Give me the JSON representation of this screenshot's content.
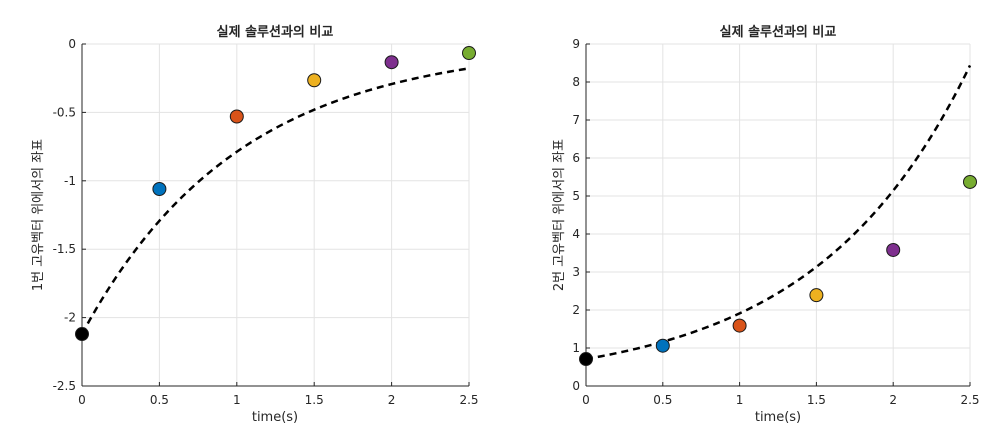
{
  "chart_data": [
    {
      "type": "scatter",
      "title": "실제 솔루션과의 비교",
      "xlabel": "time(s)",
      "ylabel": "1번 고유벡터 위에서의 좌표",
      "xlim": [
        0,
        2.5
      ],
      "ylim": [
        -2.5,
        0
      ],
      "xticks": [
        0,
        0.5,
        1,
        1.5,
        2,
        2.5
      ],
      "xtick_labels": [
        "0",
        "0.5",
        "1",
        "1.5",
        "2",
        "2.5"
      ],
      "yticks": [
        -2.5,
        -2,
        -1.5,
        -1,
        -0.5,
        0
      ],
      "ytick_labels": [
        "-2.5",
        "-2",
        "-1.5",
        "-1",
        "-0.5",
        "0"
      ],
      "grid": true,
      "points": [
        {
          "x": 0.0,
          "y": -2.12,
          "color": "#000000"
        },
        {
          "x": 0.5,
          "y": -1.06,
          "color": "#0072BD"
        },
        {
          "x": 1.0,
          "y": -0.53,
          "color": "#D95319"
        },
        {
          "x": 1.5,
          "y": -0.265,
          "color": "#EDB120"
        },
        {
          "x": 2.0,
          "y": -0.133,
          "color": "#7E2F8E"
        },
        {
          "x": 2.5,
          "y": -0.066,
          "color": "#77AC30"
        }
      ],
      "true_solution": {
        "style": "dashed",
        "color": "#000000",
        "formula": "y0*exp(-0.99*t)",
        "y0": -2.12,
        "rate": -0.99
      }
    },
    {
      "type": "scatter",
      "title": "실제 솔루션과의 비교",
      "xlabel": "time(s)",
      "ylabel": "2번 고유벡터 위에서의 좌표",
      "xlim": [
        0,
        2.5
      ],
      "ylim": [
        0,
        9
      ],
      "xticks": [
        0,
        0.5,
        1,
        1.5,
        2,
        2.5
      ],
      "xtick_labels": [
        "0",
        "0.5",
        "1",
        "1.5",
        "2",
        "2.5"
      ],
      "yticks": [
        0,
        1,
        2,
        3,
        4,
        5,
        6,
        7,
        8,
        9
      ],
      "ytick_labels": [
        "0",
        "1",
        "2",
        "3",
        "4",
        "5",
        "6",
        "7",
        "8",
        "9"
      ],
      "grid": true,
      "points": [
        {
          "x": 0.0,
          "y": 0.71,
          "color": "#000000"
        },
        {
          "x": 0.5,
          "y": 1.06,
          "color": "#0072BD"
        },
        {
          "x": 1.0,
          "y": 1.59,
          "color": "#D95319"
        },
        {
          "x": 1.5,
          "y": 2.39,
          "color": "#EDB120"
        },
        {
          "x": 2.0,
          "y": 3.58,
          "color": "#7E2F8E"
        },
        {
          "x": 2.5,
          "y": 5.37,
          "color": "#77AC30"
        }
      ],
      "true_solution": {
        "style": "dashed",
        "color": "#000000",
        "formula": "y0*exp(0.99*t)",
        "y0": 0.71,
        "rate": 0.99
      }
    }
  ]
}
